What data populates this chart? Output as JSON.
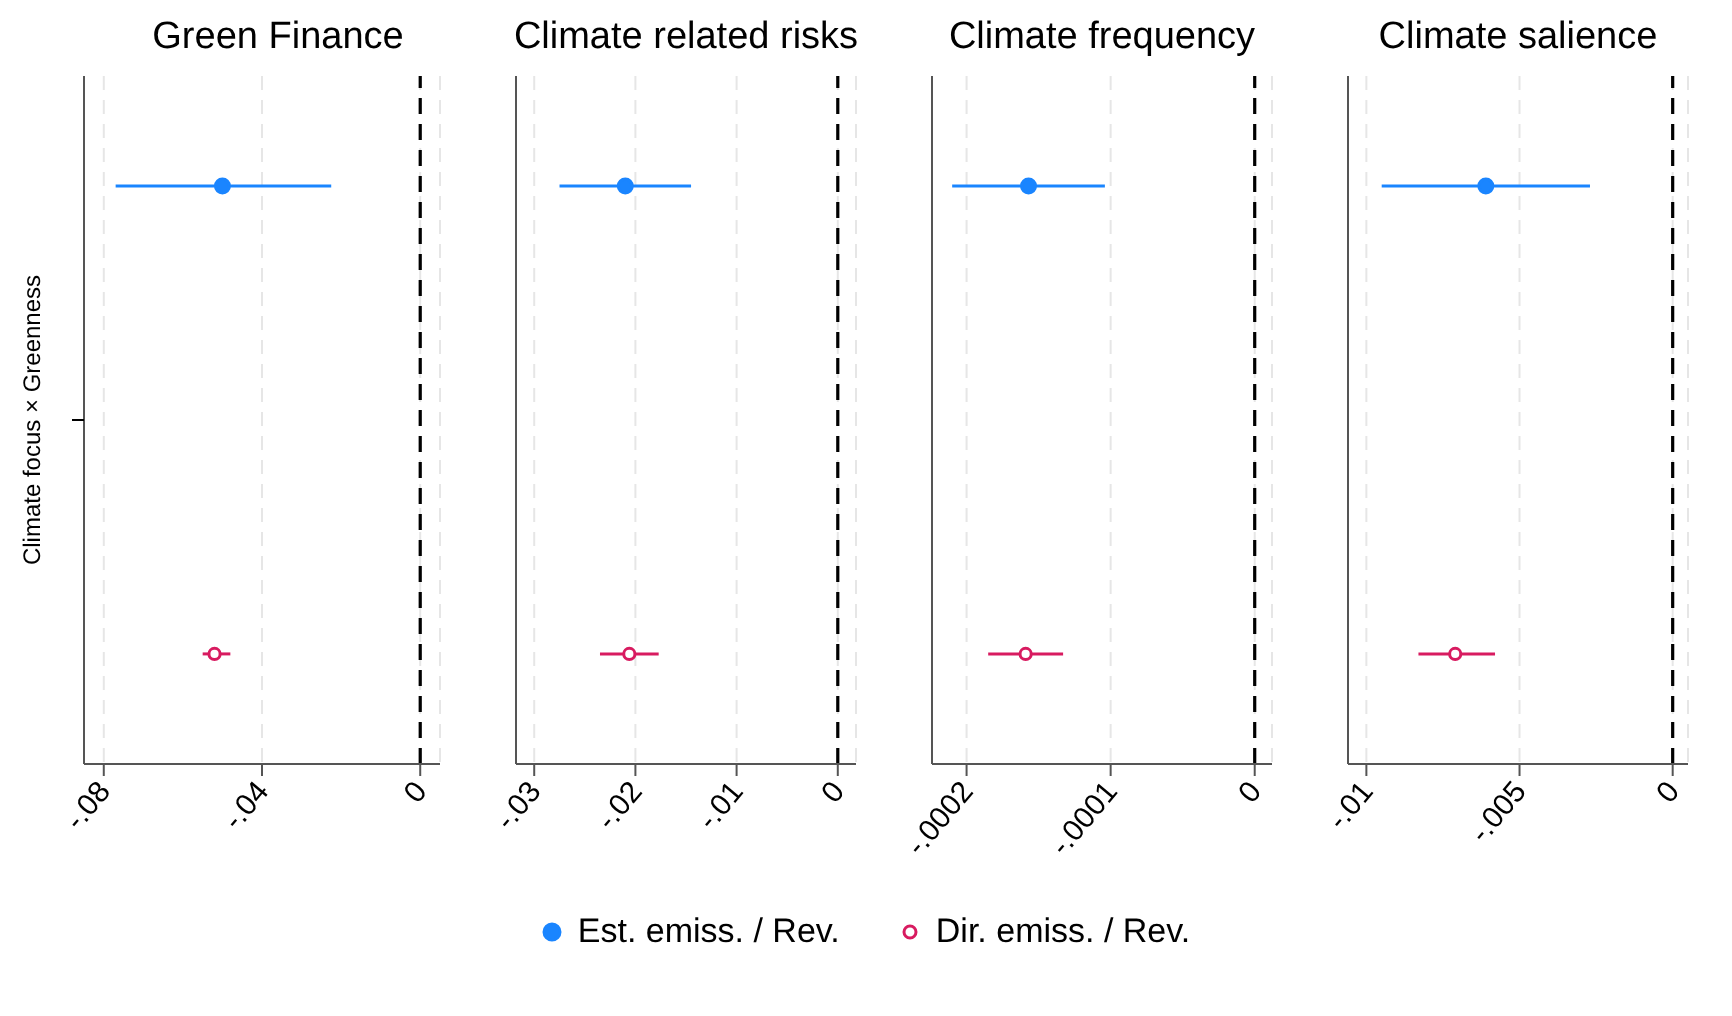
{
  "chart_data": [
    {
      "type": "scatter",
      "title": "Green Finance",
      "orientation": "horizontal",
      "categories": [
        "Climate focus × Greenness"
      ],
      "xlim": [
        -0.085,
        0.005
      ],
      "xticks": [
        {
          "value": -0.08,
          "label": "-.08"
        },
        {
          "value": -0.04,
          "label": "-.04"
        },
        {
          "value": 0,
          "label": "0"
        }
      ],
      "grid": "x",
      "marker": "circle",
      "legend": "bottom",
      "ref_lines": [
        {
          "axis": "x",
          "value": 0,
          "color": "#000000",
          "line_style": "dashed"
        }
      ],
      "series": [
        {
          "name": "Est. emiss. / Rev.",
          "color": "#1a85ff",
          "values": [
            -0.05
          ],
          "errors": [
            [
              -0.077,
              -0.0225
            ]
          ]
        },
        {
          "name": "Dir. emiss. / Rev.",
          "color": "#d81b60",
          "values": [
            -0.052
          ],
          "errors": [
            [
              -0.055,
              -0.048
            ]
          ]
        }
      ]
    },
    {
      "type": "scatter",
      "title": "Climate related risks",
      "orientation": "horizontal",
      "categories": [
        null
      ],
      "tick_labels": "x",
      "xlim": [
        -0.0318,
        0.0018
      ],
      "xticks": [
        {
          "value": -0.03,
          "label": "-.03"
        },
        {
          "value": -0.02,
          "label": "-.02"
        },
        {
          "value": -0.01,
          "label": "-.01"
        },
        {
          "value": 0,
          "label": "0"
        }
      ],
      "grid": "x",
      "marker": "circle",
      "ref_lines": [
        {
          "axis": "x",
          "value": 0,
          "color": "#000000",
          "line_style": "dashed"
        }
      ],
      "series": [
        {
          "color": "#1a85ff",
          "values": [
            -0.021
          ],
          "errors": [
            [
              -0.0275,
              -0.0145
            ]
          ]
        },
        {
          "color": "#d81b60",
          "values": [
            -0.0206
          ],
          "errors": [
            [
              -0.0235,
              -0.0177
            ]
          ]
        }
      ]
    },
    {
      "type": "scatter",
      "title": "Climate frequency",
      "orientation": "horizontal",
      "categories": [
        null
      ],
      "tick_labels": "x",
      "xlim": [
        -0.000224,
        1.2e-05
      ],
      "xticks": [
        {
          "value": -0.0002,
          "label": "-.0002"
        },
        {
          "value": -0.0001,
          "label": "-.0001"
        },
        {
          "value": 0,
          "label": "0"
        }
      ],
      "grid": "x",
      "marker": "circle",
      "ref_lines": [
        {
          "axis": "x",
          "value": 0,
          "color": "#000000",
          "line_style": "dashed"
        }
      ],
      "series": [
        {
          "color": "#1a85ff",
          "values": [
            -0.000157
          ],
          "errors": [
            [
              -0.00021,
              -0.000104
            ]
          ]
        },
        {
          "color": "#d81b60",
          "values": [
            -0.000159
          ],
          "errors": [
            [
              -0.000185,
              -0.000133
            ]
          ]
        }
      ]
    },
    {
      "type": "scatter",
      "title": "Climate salience",
      "orientation": "horizontal",
      "categories": [
        null
      ],
      "tick_labels": "x",
      "xlim": [
        -0.0106,
        0.0005
      ],
      "xticks": [
        {
          "value": -0.01,
          "label": "-.01"
        },
        {
          "value": -0.005,
          "label": "-.005"
        },
        {
          "value": 0,
          "label": "0"
        }
      ],
      "grid": "x",
      "marker": "circle",
      "ref_lines": [
        {
          "axis": "x",
          "value": 0,
          "color": "#000000",
          "line_style": "dashed"
        }
      ],
      "series": [
        {
          "color": "#1a85ff",
          "values": [
            -0.0061
          ],
          "errors": [
            [
              -0.0095,
              -0.0027
            ]
          ]
        },
        {
          "color": "#d81b60",
          "values": [
            -0.0071
          ],
          "errors": [
            [
              -0.0083,
              -0.0058
            ]
          ]
        }
      ]
    }
  ]
}
